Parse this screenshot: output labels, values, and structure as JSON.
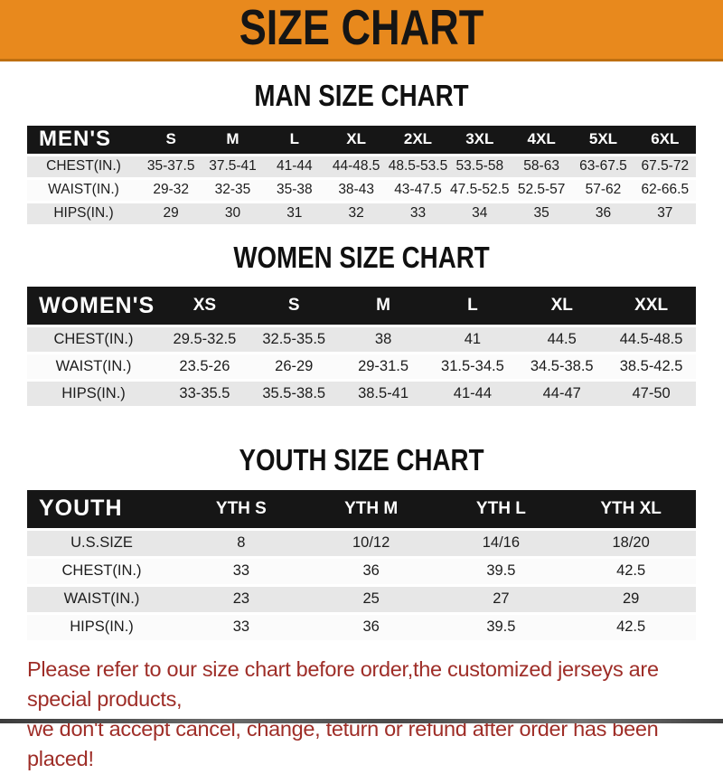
{
  "banner": {
    "title": "SIZE CHART",
    "bg_color": "#E8891D",
    "text_color": "#151515"
  },
  "sections": [
    {
      "heading": "MAN SIZE CHART",
      "table": {
        "corner_label": "MEN'S",
        "columns": [
          "S",
          "M",
          "L",
          "XL",
          "2XL",
          "3XL",
          "4XL",
          "5XL",
          "6XL"
        ],
        "rows": [
          {
            "label": "CHEST(IN.)",
            "values": [
              "35-37.5",
              "37.5-41",
              "41-44",
              "44-48.5",
              "48.5-53.5",
              "53.5-58",
              "58-63",
              "63-67.5",
              "67.5-72"
            ]
          },
          {
            "label": "WAIST(IN.)",
            "values": [
              "29-32",
              "32-35",
              "35-38",
              "38-43",
              "43-47.5",
              "47.5-52.5",
              "52.5-57",
              "57-62",
              "62-66.5"
            ]
          },
          {
            "label": "HIPS(IN.)",
            "values": [
              "29",
              "30",
              "31",
              "32",
              "33",
              "34",
              "35",
              "36",
              "37"
            ]
          }
        ]
      }
    },
    {
      "heading": "WOMEN SIZE CHART",
      "table": {
        "corner_label": "WOMEN'S",
        "columns": [
          "XS",
          "S",
          "M",
          "L",
          "XL",
          "XXL"
        ],
        "rows": [
          {
            "label": "CHEST(IN.)",
            "values": [
              "29.5-32.5",
              "32.5-35.5",
              "38",
              "41",
              "44.5",
              "44.5-48.5"
            ]
          },
          {
            "label": "WAIST(IN.)",
            "values": [
              "23.5-26",
              "26-29",
              "29-31.5",
              "31.5-34.5",
              "34.5-38.5",
              "38.5-42.5"
            ]
          },
          {
            "label": "HIPS(IN.)",
            "values": [
              "33-35.5",
              "35.5-38.5",
              "38.5-41",
              "41-44",
              "44-47",
              "47-50"
            ]
          }
        ]
      }
    },
    {
      "heading": "YOUTH SIZE CHART",
      "table": {
        "corner_label": "YOUTH",
        "columns": [
          "YTH S",
          "YTH M",
          "YTH L",
          "YTH XL"
        ],
        "rows": [
          {
            "label": "U.S.SIZE",
            "values": [
              "8",
              "10/12",
              "14/16",
              "18/20"
            ]
          },
          {
            "label": "CHEST(IN.)",
            "values": [
              "33",
              "36",
              "39.5",
              "42.5"
            ]
          },
          {
            "label": "WAIST(IN.)",
            "values": [
              "23",
              "25",
              "27",
              "29"
            ]
          },
          {
            "label": "HIPS(IN.)",
            "values": [
              "33",
              "36",
              "39.5",
              "42.5"
            ]
          }
        ]
      }
    }
  ],
  "disclaimer": {
    "line1": "Please refer to our size chart before order,the customized jerseys are special products,",
    "line2": "we don't accept cancel, change, teturn or refund after order has been placed!",
    "color": "#9E2D27"
  }
}
